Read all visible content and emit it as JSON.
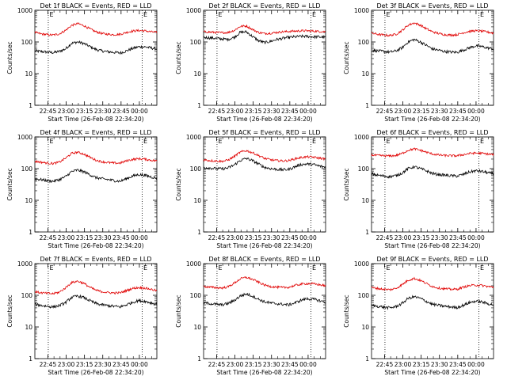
{
  "colors": {
    "events": "#000000",
    "lld": "#e00000",
    "axis": "#000000",
    "background": "#ffffff"
  },
  "shared": {
    "ylabel": "Counts/sec",
    "xlabel": "Start Time (26-Feb-08 22:34:20)",
    "xticks": [
      "22:45",
      "23:00",
      "23:15",
      "23:30",
      "23:45",
      "00:00"
    ],
    "yticks": [
      "1",
      "10",
      "100",
      "1000"
    ],
    "marker": "E"
  },
  "chart_data": [
    {
      "type": "line",
      "title": "Det 1f BLACK = Events, RED = LLD",
      "yscale": "log",
      "ylim": [
        1,
        1000
      ],
      "xlim_minutes": [
        0,
        100
      ],
      "event_markers_minutes": [
        11,
        88
      ],
      "series": [
        {
          "color": "#000000",
          "x": [
            0,
            5,
            10,
            15,
            20,
            25,
            30,
            35,
            40,
            45,
            50,
            55,
            60,
            65,
            70,
            75,
            80,
            85,
            90,
            95,
            100
          ],
          "y": [
            52,
            50,
            48,
            46,
            50,
            60,
            90,
            100,
            90,
            72,
            58,
            52,
            49,
            47,
            45,
            52,
            62,
            70,
            70,
            65,
            60
          ]
        },
        {
          "color": "#e00000",
          "x": [
            0,
            5,
            10,
            15,
            20,
            25,
            30,
            35,
            40,
            45,
            50,
            55,
            60,
            65,
            70,
            75,
            80,
            85,
            90,
            95,
            100
          ],
          "y": [
            200,
            180,
            170,
            165,
            180,
            230,
            330,
            380,
            330,
            260,
            210,
            185,
            175,
            170,
            175,
            200,
            220,
            230,
            225,
            210,
            200
          ]
        }
      ]
    },
    {
      "type": "line",
      "title": "Det 2f BLACK = Events, RED = LLD",
      "yscale": "log",
      "ylim": [
        1,
        1000
      ],
      "xlim_minutes": [
        0,
        100
      ],
      "event_markers_minutes": [
        11,
        88
      ],
      "series": [
        {
          "color": "#000000",
          "x": [
            0,
            5,
            10,
            15,
            20,
            25,
            30,
            35,
            40,
            45,
            50,
            55,
            60,
            65,
            70,
            75,
            80,
            85,
            90,
            95,
            100
          ],
          "y": [
            140,
            135,
            130,
            125,
            120,
            140,
            200,
            210,
            150,
            110,
            95,
            105,
            120,
            130,
            140,
            145,
            150,
            150,
            145,
            145,
            140
          ]
        },
        {
          "color": "#e00000",
          "x": [
            0,
            5,
            10,
            15,
            20,
            25,
            30,
            35,
            40,
            45,
            50,
            55,
            60,
            65,
            70,
            75,
            80,
            85,
            90,
            95,
            100
          ],
          "y": [
            210,
            205,
            200,
            195,
            200,
            230,
            310,
            320,
            250,
            200,
            185,
            190,
            200,
            210,
            215,
            220,
            225,
            225,
            220,
            215,
            210
          ]
        }
      ]
    },
    {
      "type": "line",
      "title": "Det 3f BLACK = Events, RED = LLD",
      "yscale": "log",
      "ylim": [
        1,
        1000
      ],
      "xlim_minutes": [
        0,
        100
      ],
      "event_markers_minutes": [
        11,
        88
      ],
      "series": [
        {
          "color": "#000000",
          "x": [
            0,
            5,
            10,
            15,
            20,
            25,
            30,
            35,
            40,
            45,
            50,
            55,
            60,
            65,
            70,
            75,
            80,
            85,
            90,
            95,
            100
          ],
          "y": [
            55,
            52,
            50,
            48,
            52,
            65,
            100,
            120,
            100,
            78,
            60,
            55,
            50,
            48,
            47,
            55,
            65,
            75,
            72,
            65,
            60
          ]
        },
        {
          "color": "#e00000",
          "x": [
            0,
            5,
            10,
            15,
            20,
            25,
            30,
            35,
            40,
            45,
            50,
            55,
            60,
            65,
            70,
            75,
            80,
            85,
            90,
            95,
            100
          ],
          "y": [
            190,
            175,
            165,
            160,
            175,
            230,
            340,
            400,
            340,
            260,
            210,
            185,
            170,
            165,
            170,
            195,
            215,
            225,
            220,
            205,
            190
          ]
        }
      ]
    },
    {
      "type": "line",
      "title": "Det 4f BLACK = Events, RED = LLD",
      "yscale": "log",
      "ylim": [
        1,
        1000
      ],
      "xlim_minutes": [
        0,
        100
      ],
      "event_markers_minutes": [
        11,
        88
      ],
      "series": [
        {
          "color": "#000000",
          "x": [
            0,
            5,
            10,
            15,
            20,
            25,
            30,
            35,
            40,
            45,
            50,
            55,
            60,
            65,
            70,
            75,
            80,
            85,
            90,
            95,
            100
          ],
          "y": [
            48,
            45,
            42,
            40,
            45,
            55,
            80,
            90,
            80,
            65,
            52,
            48,
            45,
            42,
            40,
            48,
            58,
            65,
            62,
            55,
            50
          ]
        },
        {
          "color": "#e00000",
          "x": [
            0,
            5,
            10,
            15,
            20,
            25,
            30,
            35,
            40,
            45,
            50,
            55,
            60,
            65,
            70,
            75,
            80,
            85,
            90,
            95,
            100
          ],
          "y": [
            170,
            160,
            150,
            145,
            160,
            210,
            300,
            330,
            290,
            230,
            185,
            165,
            155,
            150,
            150,
            175,
            195,
            205,
            200,
            185,
            175
          ]
        }
      ]
    },
    {
      "type": "line",
      "title": "Det 5f BLACK = Events, RED = LLD",
      "yscale": "log",
      "ylim": [
        1,
        1000
      ],
      "xlim_minutes": [
        0,
        100
      ],
      "event_markers_minutes": [
        11,
        88
      ],
      "series": [
        {
          "color": "#000000",
          "x": [
            0,
            5,
            10,
            15,
            20,
            25,
            30,
            35,
            40,
            45,
            50,
            55,
            60,
            65,
            70,
            75,
            80,
            85,
            90,
            95,
            100
          ],
          "y": [
            110,
            105,
            100,
            98,
            105,
            130,
            180,
            210,
            180,
            140,
            110,
            100,
            95,
            92,
            95,
            115,
            135,
            140,
            135,
            120,
            110
          ]
        },
        {
          "color": "#e00000",
          "x": [
            0,
            5,
            10,
            15,
            20,
            25,
            30,
            35,
            40,
            45,
            50,
            55,
            60,
            65,
            70,
            75,
            80,
            85,
            90,
            95,
            100
          ],
          "y": [
            190,
            180,
            175,
            170,
            185,
            240,
            330,
            370,
            320,
            260,
            210,
            190,
            180,
            175,
            180,
            205,
            225,
            235,
            230,
            215,
            200
          ]
        }
      ]
    },
    {
      "type": "line",
      "title": "Det 6f BLACK = Events, RED = LLD",
      "yscale": "log",
      "ylim": [
        1,
        1000
      ],
      "xlim_minutes": [
        0,
        100
      ],
      "event_markers_minutes": [
        11,
        88
      ],
      "series": [
        {
          "color": "#000000",
          "x": [
            0,
            5,
            10,
            15,
            20,
            25,
            30,
            35,
            40,
            45,
            50,
            55,
            60,
            65,
            70,
            75,
            80,
            85,
            90,
            95,
            100
          ],
          "y": [
            68,
            62,
            58,
            56,
            60,
            72,
            100,
            115,
            100,
            85,
            70,
            65,
            62,
            60,
            58,
            65,
            78,
            85,
            82,
            75,
            68
          ]
        },
        {
          "color": "#e00000",
          "x": [
            0,
            5,
            10,
            15,
            20,
            25,
            30,
            35,
            40,
            45,
            50,
            55,
            60,
            65,
            70,
            75,
            80,
            85,
            90,
            95,
            100
          ],
          "y": [
            270,
            260,
            255,
            250,
            260,
            300,
            380,
            420,
            380,
            330,
            290,
            270,
            260,
            255,
            255,
            275,
            300,
            310,
            305,
            290,
            275
          ]
        }
      ]
    },
    {
      "type": "line",
      "title": "Det 7f BLACK = Events, RED = LLD",
      "yscale": "log",
      "ylim": [
        1,
        1000
      ],
      "xlim_minutes": [
        0,
        100
      ],
      "event_markers_minutes": [
        11,
        88
      ],
      "series": [
        {
          "color": "#000000",
          "x": [
            0,
            5,
            10,
            15,
            20,
            25,
            30,
            35,
            40,
            45,
            50,
            55,
            60,
            65,
            70,
            75,
            80,
            85,
            90,
            95,
            100
          ],
          "y": [
            52,
            48,
            45,
            43,
            47,
            58,
            85,
            95,
            85,
            68,
            55,
            50,
            47,
            45,
            43,
            50,
            60,
            68,
            65,
            58,
            52
          ]
        },
        {
          "color": "#e00000",
          "x": [
            0,
            5,
            10,
            15,
            20,
            25,
            30,
            35,
            40,
            45,
            50,
            55,
            60,
            65,
            70,
            75,
            80,
            85,
            90,
            95,
            100
          ],
          "y": [
            130,
            120,
            115,
            112,
            125,
            170,
            250,
            280,
            240,
            180,
            145,
            130,
            122,
            118,
            120,
            140,
            165,
            175,
            170,
            155,
            140
          ]
        }
      ]
    },
    {
      "type": "line",
      "title": "Det 8f BLACK = Events, RED = LLD",
      "yscale": "log",
      "ylim": [
        1,
        1000
      ],
      "xlim_minutes": [
        0,
        100
      ],
      "event_markers_minutes": [
        11,
        88
      ],
      "series": [
        {
          "color": "#000000",
          "x": [
            0,
            5,
            10,
            15,
            20,
            25,
            30,
            35,
            40,
            45,
            50,
            55,
            60,
            65,
            70,
            75,
            80,
            85,
            90,
            95,
            100
          ],
          "y": [
            58,
            55,
            52,
            50,
            55,
            68,
            95,
            110,
            95,
            75,
            62,
            57,
            54,
            52,
            50,
            58,
            70,
            78,
            75,
            68,
            60
          ]
        },
        {
          "color": "#e00000",
          "x": [
            0,
            5,
            10,
            15,
            20,
            25,
            30,
            35,
            40,
            45,
            50,
            55,
            60,
            65,
            70,
            75,
            80,
            85,
            90,
            95,
            100
          ],
          "y": [
            190,
            180,
            175,
            170,
            185,
            240,
            330,
            370,
            320,
            260,
            210,
            190,
            180,
            175,
            180,
            205,
            225,
            235,
            230,
            215,
            200
          ]
        }
      ]
    },
    {
      "type": "line",
      "title": "Det 9f BLACK = Events, RED = LLD",
      "yscale": "log",
      "ylim": [
        1,
        1000
      ],
      "xlim_minutes": [
        0,
        100
      ],
      "event_markers_minutes": [
        11,
        88
      ],
      "series": [
        {
          "color": "#000000",
          "x": [
            0,
            5,
            10,
            15,
            20,
            25,
            30,
            35,
            40,
            45,
            50,
            55,
            60,
            65,
            70,
            75,
            80,
            85,
            90,
            95,
            100
          ],
          "y": [
            48,
            45,
            42,
            40,
            44,
            55,
            80,
            90,
            80,
            64,
            52,
            48,
            45,
            43,
            41,
            48,
            58,
            65,
            62,
            55,
            50
          ]
        },
        {
          "color": "#e00000",
          "x": [
            0,
            5,
            10,
            15,
            20,
            25,
            30,
            35,
            40,
            45,
            50,
            55,
            60,
            65,
            70,
            75,
            80,
            85,
            90,
            95,
            100
          ],
          "y": [
            175,
            165,
            155,
            150,
            165,
            215,
            300,
            340,
            295,
            235,
            190,
            170,
            160,
            155,
            155,
            180,
            200,
            210,
            205,
            190,
            180
          ]
        }
      ]
    }
  ]
}
